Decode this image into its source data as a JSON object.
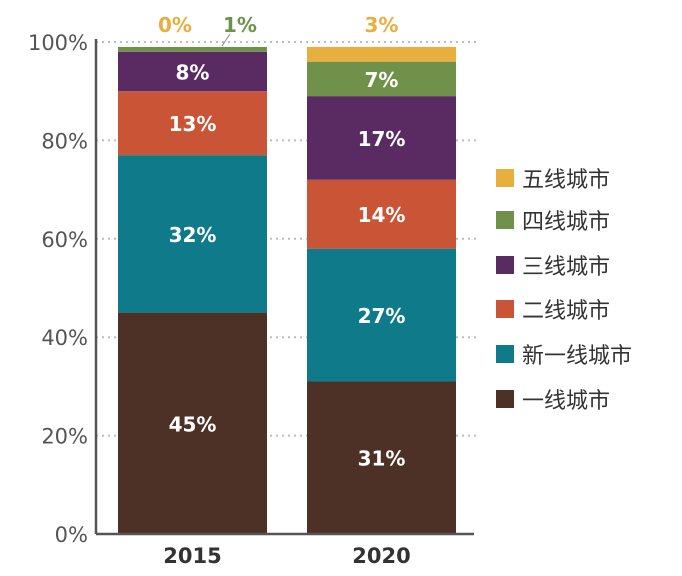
{
  "chart_data": {
    "type": "bar",
    "stacked": true,
    "categories": [
      "2015",
      "2020"
    ],
    "ylim": [
      0,
      100
    ],
    "yticks": [
      "0%",
      "20%",
      "40%",
      "60%",
      "80%",
      "100%"
    ],
    "grid": true,
    "legend_position": "right",
    "series": [
      {
        "name": "一线城市",
        "color": "#4E3126",
        "values": [
          45,
          31
        ],
        "labels": [
          "45%",
          "31%"
        ]
      },
      {
        "name": "新一线城市",
        "color": "#0F7A8A",
        "values": [
          32,
          27
        ],
        "labels": [
          "32%",
          "27%"
        ]
      },
      {
        "name": "二线城市",
        "color": "#C95436",
        "values": [
          13,
          14
        ],
        "labels": [
          "13%",
          "14%"
        ]
      },
      {
        "name": "三线城市",
        "color": "#5A2A63",
        "values": [
          8,
          17
        ],
        "labels": [
          "8%",
          "17%"
        ]
      },
      {
        "name": "四线城市",
        "color": "#70914A",
        "values": [
          1,
          7
        ],
        "labels": [
          "1%",
          "7%"
        ]
      },
      {
        "name": "五线城市",
        "color": "#E8AE3E",
        "values": [
          0,
          3
        ],
        "labels": [
          "0%",
          "3%"
        ]
      }
    ]
  }
}
